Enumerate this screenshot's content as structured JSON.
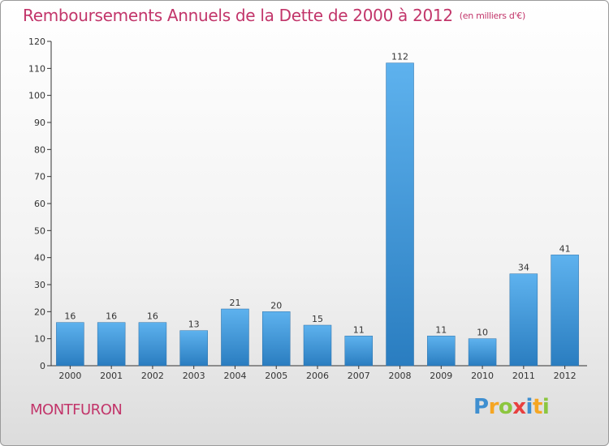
{
  "title": {
    "main": "Remboursements Annuels de la Dette de 2000 à 2012",
    "unit": "(en milliers d'€)"
  },
  "commune": "MONTFURON",
  "logo": {
    "letters": [
      "P",
      "r",
      "o",
      "x",
      "i",
      "t",
      "i"
    ],
    "colors": [
      "#3f8fd0",
      "#f5a623",
      "#8cc63f",
      "#e8403f",
      "#3f8fd0",
      "#f5a623",
      "#8cc63f"
    ]
  },
  "colors": {
    "bar_top": "#5eb2ee",
    "bar_bottom": "#2a7dc0",
    "title": "#c2356a"
  },
  "chart_data": {
    "type": "bar",
    "title": "Remboursements Annuels de la Dette de 2000 à 2012",
    "xlabel": "",
    "ylabel": "",
    "ylim": [
      0,
      120
    ],
    "yticks": [
      0,
      10,
      20,
      30,
      40,
      50,
      60,
      70,
      80,
      90,
      100,
      110,
      120
    ],
    "grid": false,
    "categories": [
      "2000",
      "2001",
      "2002",
      "2003",
      "2004",
      "2005",
      "2006",
      "2007",
      "2008",
      "2009",
      "2010",
      "2011",
      "2012"
    ],
    "values": [
      16,
      16,
      16,
      13,
      21,
      20,
      15,
      11,
      112,
      11,
      10,
      34,
      41
    ],
    "labels": [
      "16",
      "16",
      "16",
      "13",
      "21",
      "20",
      "15",
      "11",
      "112",
      "11",
      "10",
      "34",
      "41"
    ]
  }
}
